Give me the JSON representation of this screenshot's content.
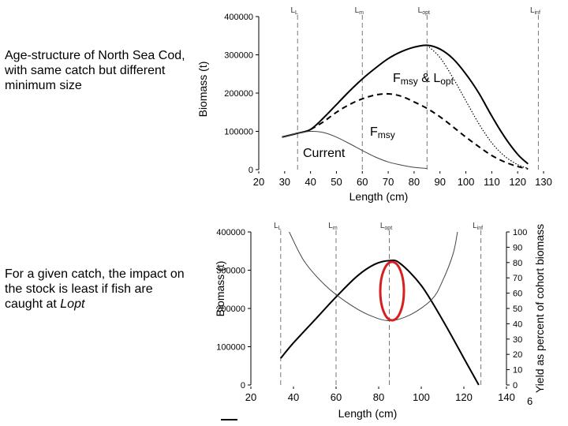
{
  "captions": {
    "top": "Age-structure of North Sea Cod, with same catch but different minimum size",
    "bottom_prefix": "For a given catch, the impact on the stock is least if fish are caught at ",
    "bottom_italic": "Lopt"
  },
  "page_number": "6",
  "chart_data": [
    {
      "type": "line",
      "xlabel": "Length (cm)",
      "ylabel": "Biomass (t)",
      "xlim": [
        20,
        130
      ],
      "ylim": [
        0,
        400000
      ],
      "x_ticks": [
        20,
        30,
        40,
        50,
        60,
        70,
        80,
        90,
        100,
        110,
        120,
        130
      ],
      "y_ticks": [
        0,
        100000,
        200000,
        300000,
        400000
      ],
      "y_tick_labels": [
        "0",
        "100000",
        "200000",
        "300000",
        "400000"
      ],
      "grid": false,
      "reference_lines": [
        {
          "x": 35,
          "label_main": "L",
          "label_sub": "L"
        },
        {
          "x": 60,
          "label_main": "L",
          "label_sub": "m"
        },
        {
          "x": 85,
          "label_main": "L",
          "label_sub": "opt"
        },
        {
          "x": 128,
          "label_main": "L",
          "label_sub": "inf"
        }
      ],
      "series": [
        {
          "style": "solid-thick",
          "x": [
            29,
            35,
            40,
            45,
            50,
            55,
            60,
            65,
            70,
            75,
            80,
            85,
            90,
            95,
            100,
            105,
            110,
            115,
            120,
            124
          ],
          "y": [
            85000,
            95000,
            105000,
            135000,
            170000,
            205000,
            237000,
            265000,
            290000,
            308000,
            320000,
            325000,
            315000,
            290000,
            250000,
            200000,
            140000,
            85000,
            40000,
            15000
          ]
        },
        {
          "style": "dashed",
          "x": [
            40,
            45,
            50,
            55,
            60,
            65,
            70,
            75,
            80,
            85,
            90,
            95,
            100,
            105,
            110,
            115,
            120,
            124
          ],
          "y": [
            105000,
            125000,
            150000,
            170000,
            185000,
            195000,
            198000,
            192000,
            177000,
            160000,
            138000,
            112000,
            85000,
            60000,
            37000,
            20000,
            8000,
            2000
          ]
        },
        {
          "style": "dotted",
          "x": [
            85,
            90,
            95,
            100,
            105,
            110,
            115,
            120,
            124
          ],
          "y": [
            325000,
            293000,
            240000,
            180000,
            120000,
            70000,
            35000,
            13000,
            3000
          ]
        },
        {
          "style": "solid-thin",
          "x": [
            29,
            35,
            40,
            45,
            50,
            55,
            60,
            65,
            70,
            75,
            80,
            85
          ],
          "y": [
            85000,
            95000,
            100000,
            97000,
            85000,
            68000,
            50000,
            33000,
            20000,
            12000,
            6000,
            3000
          ]
        }
      ],
      "annotations": [
        {
          "text_main": "F",
          "text_sub": "msy",
          "text_mid": " & L",
          "text_sub2": "opt"
        },
        {
          "text_main": "F",
          "text_sub": "msy"
        },
        {
          "text_main": "Current"
        }
      ]
    },
    {
      "type": "line",
      "xlabel": "Length (cm)",
      "ylabel": "Biomass (t)",
      "y2label": "Yield as percent of cohort biomass",
      "xlim": [
        20,
        140
      ],
      "ylim": [
        0,
        400000
      ],
      "y2lim": [
        0,
        100
      ],
      "x_ticks": [
        20,
        40,
        60,
        80,
        100,
        120,
        140
      ],
      "y_ticks": [
        0,
        100000,
        200000,
        300000,
        400000
      ],
      "y_tick_labels": [
        "0",
        "100000",
        "200000",
        "300000",
        "400000"
      ],
      "y2_ticks": [
        0,
        10,
        20,
        30,
        40,
        50,
        60,
        70,
        80,
        90,
        100
      ],
      "grid": false,
      "reference_lines": [
        {
          "x": 34,
          "label_main": "L",
          "label_sub": "L"
        },
        {
          "x": 60,
          "label_main": "L",
          "label_sub": "m"
        },
        {
          "x": 85,
          "label_main": "L",
          "label_sub": "opt"
        },
        {
          "x": 128,
          "label_main": "L",
          "label_sub": "inf"
        }
      ],
      "series": [
        {
          "style": "solid-thick",
          "axis": "left",
          "x": [
            34,
            40,
            50,
            60,
            70,
            78,
            85,
            90,
            100,
            110,
            120,
            127
          ],
          "y": [
            70000,
            110000,
            170000,
            230000,
            285000,
            315000,
            325000,
            318000,
            260000,
            170000,
            70000,
            0
          ]
        },
        {
          "style": "solid-thin",
          "axis": "right",
          "x": [
            38,
            45,
            55,
            65,
            75,
            85,
            95,
            105,
            110,
            115,
            117
          ],
          "y": [
            100,
            81,
            65,
            54,
            46,
            42,
            46,
            56,
            68,
            86,
            100
          ]
        }
      ]
    }
  ]
}
